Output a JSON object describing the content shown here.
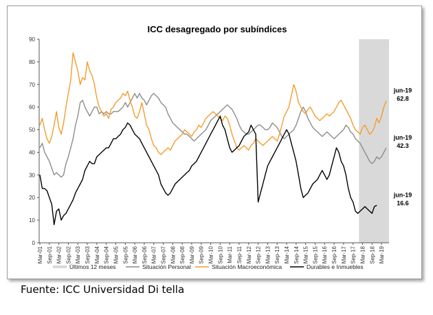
{
  "chart_data": {
    "type": "line",
    "title": "ICC desagregado por subíndices",
    "ylim": [
      0,
      90
    ],
    "yticks": [
      0,
      10,
      20,
      30,
      40,
      50,
      60,
      70,
      80,
      90
    ],
    "xlabels": [
      "Mar-01",
      "Sep-01",
      "Mar-02",
      "Sep-02",
      "Mar-03",
      "Sep-03",
      "Mar-04",
      "Sep-04",
      "Mar-05",
      "Sep-05",
      "Mar-06",
      "Sep-06",
      "Mar-07",
      "Sep-07",
      "Mar-08",
      "Sep-08",
      "Mar-09",
      "Sep-09",
      "Mar-10",
      "Sep-10",
      "Mar-11",
      "Sep-11",
      "Mar-12",
      "Sep-12",
      "Mar-13",
      "Sep-13",
      "Mar-14",
      "Sep-14",
      "Mar-15",
      "Sep-15",
      "Mar-16",
      "Sep-16",
      "Mar-17",
      "Sep-17",
      "Mar-18",
      "Sep-18",
      "Mar-19"
    ],
    "shaded_band": {
      "label": "Últimos 12 meses",
      "from": "Jul-18",
      "to": "Jun-19",
      "color": "#d9d9d9"
    },
    "series": [
      {
        "name": "Situación Personal",
        "color": "#8c8c8c",
        "values": [
          42,
          44,
          40,
          38,
          36,
          33,
          30,
          31,
          30,
          29,
          30,
          35,
          38,
          42,
          46,
          52,
          56,
          62,
          63,
          60,
          58,
          56,
          58,
          60,
          60,
          57,
          58,
          57,
          58,
          57,
          57,
          58,
          58,
          58,
          59,
          60,
          62,
          60,
          62,
          64,
          66,
          64,
          66,
          64,
          63,
          61,
          63,
          65,
          66,
          65,
          64,
          62,
          61,
          60,
          57,
          55,
          53,
          52,
          51,
          50,
          49,
          48,
          48,
          47,
          46,
          45,
          46,
          47,
          48,
          49,
          50,
          52,
          54,
          55,
          56,
          57,
          58,
          59,
          60,
          61,
          60,
          59,
          57,
          55,
          52,
          50,
          49,
          48,
          48,
          49,
          50,
          51,
          52,
          52,
          51,
          50,
          50,
          51,
          53,
          52,
          51,
          49,
          47,
          46,
          47,
          48,
          49,
          50,
          52,
          55,
          58,
          60,
          58,
          55,
          53,
          51,
          50,
          49,
          48,
          47,
          48,
          49,
          48,
          47,
          46,
          47,
          48,
          49,
          50,
          52,
          51,
          49,
          48,
          46,
          45,
          44,
          42,
          40,
          38,
          36,
          35,
          36,
          38,
          37,
          38,
          40,
          42
        ],
        "last_label": [
          "jun-19",
          "42.3"
        ]
      },
      {
        "name": "Situación Macroeconómica",
        "color": "#f39c2c",
        "values": [
          52,
          55,
          50,
          46,
          44,
          47,
          52,
          58,
          51,
          48,
          53,
          60,
          66,
          72,
          84,
          80,
          76,
          70,
          73,
          72,
          80,
          76,
          74,
          70,
          64,
          60,
          58,
          56,
          57,
          55,
          59,
          60,
          62,
          63,
          64,
          66,
          65,
          67,
          63,
          60,
          56,
          55,
          58,
          62,
          57,
          52,
          50,
          46,
          43,
          42,
          40,
          39,
          40,
          41,
          42,
          41,
          43,
          45,
          46,
          47,
          48,
          50,
          49,
          48,
          47,
          49,
          50,
          52,
          51,
          53,
          55,
          56,
          57,
          58,
          57,
          56,
          55,
          54,
          56,
          55,
          52,
          48,
          45,
          42,
          41,
          42,
          43,
          42,
          41,
          43,
          44,
          46,
          45,
          44,
          43,
          44,
          45,
          46,
          47,
          46,
          45,
          48,
          52,
          56,
          58,
          60,
          65,
          70,
          67,
          62,
          60,
          58,
          57,
          59,
          60,
          58,
          56,
          55,
          54,
          55,
          56,
          57,
          56,
          57,
          58,
          60,
          62,
          63,
          61,
          59,
          57,
          55,
          52,
          50,
          49,
          48,
          51,
          52,
          50,
          48,
          49,
          51,
          55,
          53,
          56,
          60,
          62.8
        ],
        "last_label": [
          "jun-19",
          "62.8"
        ]
      },
      {
        "name": "Durables e Inmuebles",
        "color": "#000000",
        "values": [
          30,
          24,
          24,
          23,
          20,
          17,
          8,
          14,
          15,
          10,
          12,
          13,
          15,
          17,
          19,
          22,
          24,
          26,
          28,
          32,
          34,
          36,
          35,
          35,
          38,
          39,
          40,
          41,
          42,
          42,
          44,
          46,
          46,
          47,
          48,
          50,
          51,
          53,
          52,
          50,
          48,
          47,
          46,
          44,
          42,
          40,
          38,
          36,
          34,
          32,
          30,
          26,
          24,
          22,
          21,
          22,
          24,
          26,
          27,
          28,
          29,
          30,
          31,
          32,
          34,
          35,
          36,
          38,
          40,
          42,
          44,
          46,
          48,
          50,
          52,
          54,
          56,
          52,
          50,
          46,
          42,
          40,
          41,
          42,
          43,
          45,
          47,
          48,
          49,
          52,
          50,
          48,
          18,
          22,
          26,
          30,
          34,
          36,
          38,
          40,
          42,
          44,
          46,
          48,
          50,
          48,
          44,
          40,
          36,
          30,
          24,
          20,
          21,
          22,
          24,
          26,
          27,
          28,
          30,
          32,
          30,
          28,
          30,
          34,
          38,
          42,
          40,
          36,
          34,
          30,
          24,
          20,
          18,
          14,
          13,
          14,
          15,
          16,
          15,
          14,
          13,
          16,
          16.6
        ],
        "last_label": [
          "jun-19",
          "16.6"
        ]
      }
    ],
    "legend": [
      "Últimos 12 meses",
      "Situación Personal",
      "Situación Macroeconómica",
      "Durables e Inmuebles"
    ],
    "source": "Fuente: ICC Universidad Di tella"
  }
}
